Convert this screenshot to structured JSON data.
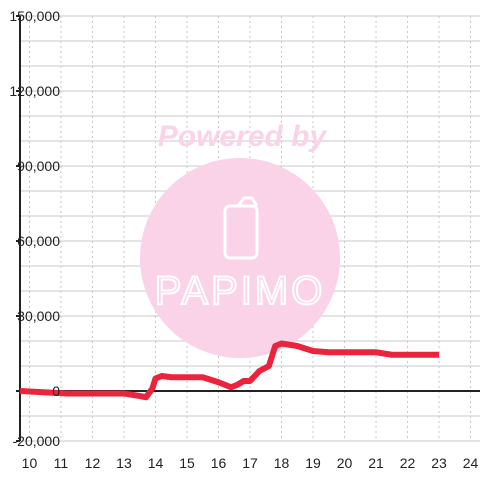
{
  "chart_data": {
    "type": "line",
    "title": "",
    "xlabel": "",
    "ylabel": "",
    "xlim": [
      9.7,
      24.3
    ],
    "ylim": [
      -20000,
      150000
    ],
    "x_ticks": [
      10,
      11,
      12,
      13,
      14,
      15,
      16,
      17,
      18,
      19,
      20,
      21,
      22,
      23,
      24
    ],
    "y_ticks": [
      -20000,
      0,
      30000,
      60000,
      90000,
      120000,
      150000
    ],
    "x_tick_labels": [
      "10",
      "11",
      "12",
      "13",
      "14",
      "15",
      "16",
      "17",
      "18",
      "19",
      "20",
      "21",
      "22",
      "23",
      "24"
    ],
    "y_tick_labels": [
      "-20,000",
      "0",
      "30,000",
      "60,000",
      "90,000",
      "120,000",
      "150,000"
    ],
    "grid": true,
    "series": [
      {
        "color": "#e8253d",
        "x": [
          9.7,
          11.2,
          12.0,
          13.0,
          13.5,
          13.7,
          13.9,
          14.0,
          14.2,
          14.5,
          15.0,
          15.5,
          16.0,
          16.4,
          16.6,
          16.8,
          17.0,
          17.3,
          17.6,
          17.8,
          18.0,
          18.5,
          19.0,
          19.5,
          20.5,
          21.0,
          21.5,
          22.0,
          23.0
        ],
        "y": [
          0,
          -1000,
          -1000,
          -1000,
          -2000,
          -2500,
          1000,
          5000,
          6000,
          5500,
          5500,
          5500,
          3500,
          1500,
          2500,
          4000,
          4000,
          8000,
          10000,
          18000,
          19000,
          18000,
          16000,
          15500,
          15500,
          15500,
          14500,
          14500,
          14500
        ]
      }
    ]
  },
  "watermark": {
    "powered_by": "Powered by",
    "brand": "PAPIMO",
    "color": "#fbd3e8"
  }
}
